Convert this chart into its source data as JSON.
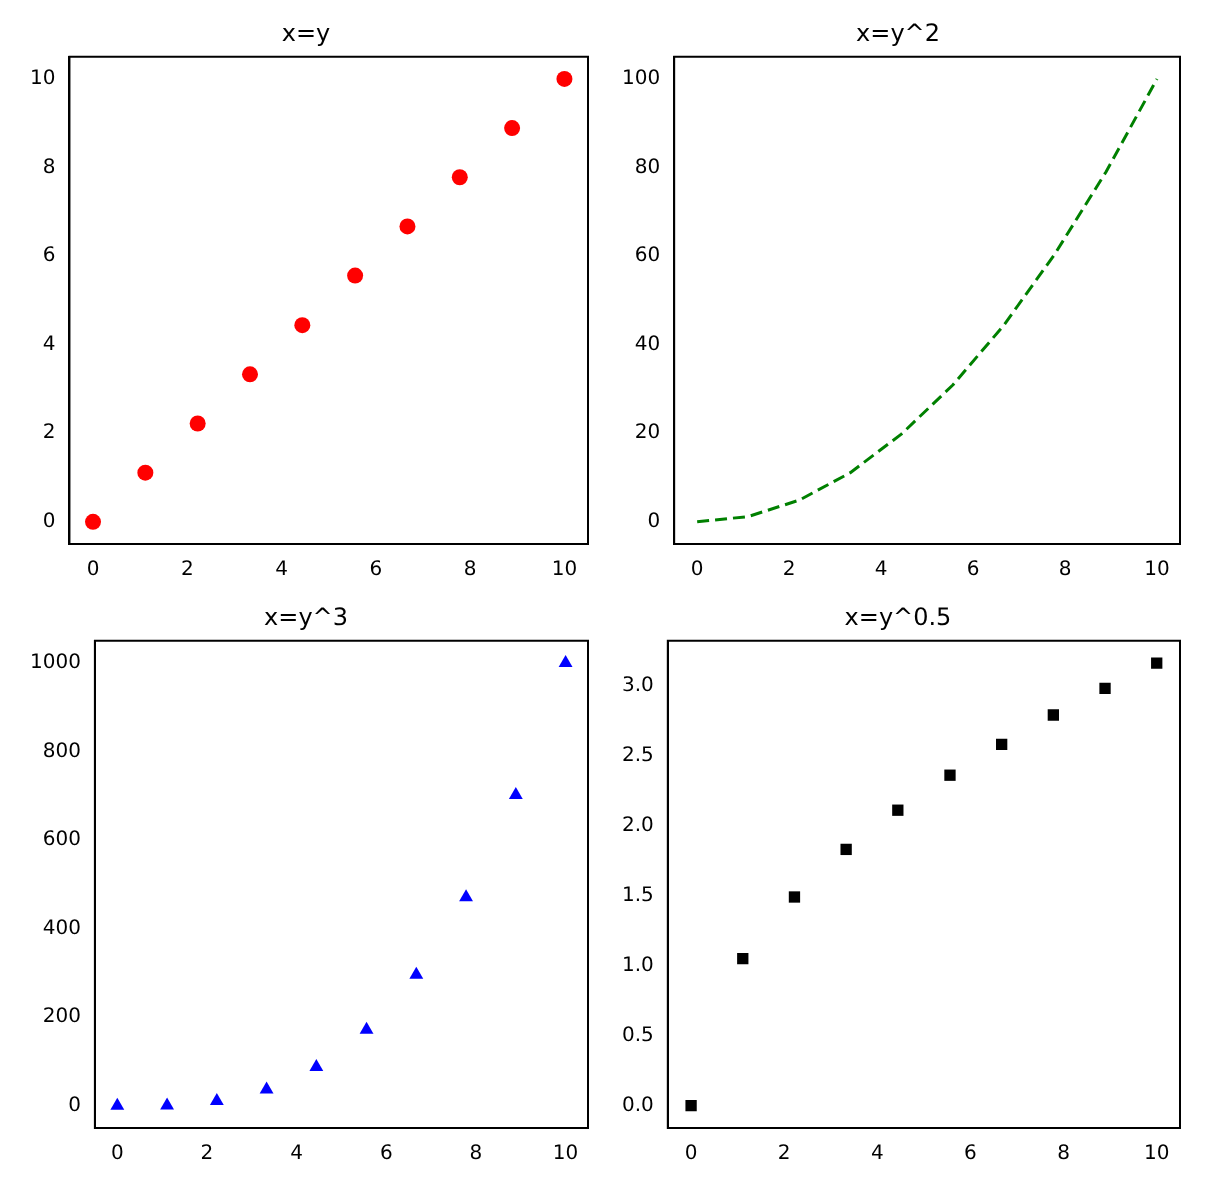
{
  "chart_data": [
    {
      "type": "scatter",
      "title": "x=y",
      "x": [
        0,
        1.11,
        2.22,
        3.33,
        4.44,
        5.56,
        6.67,
        7.78,
        8.89,
        10
      ],
      "series": [
        {
          "color": "#ff0000",
          "values": [
            0,
            1.11,
            2.22,
            3.33,
            4.44,
            5.56,
            6.67,
            7.78,
            8.89,
            10
          ]
        }
      ],
      "marker": "circle",
      "xlim": [
        -0.5,
        10.5
      ],
      "xticks": [
        0,
        2,
        4,
        6,
        8,
        10
      ],
      "ylim": [
        -0.5,
        10.5
      ],
      "yticks": [
        0,
        2,
        4,
        6,
        8,
        10
      ],
      "grid": false,
      "legend": false
    },
    {
      "type": "line",
      "title": "x=y^2",
      "x": [
        0,
        1.11,
        2.22,
        3.33,
        4.44,
        5.56,
        6.67,
        7.78,
        8.89,
        10
      ],
      "series": [
        {
          "color": "#008000",
          "values": [
            0,
            1.2,
            4.9,
            11.1,
            19.8,
            30.9,
            44.4,
            60.5,
            79.0,
            100
          ]
        }
      ],
      "line_style": "dashed",
      "marker": "none",
      "xlim": [
        -0.5,
        10.5
      ],
      "xticks": [
        0,
        2,
        4,
        6,
        8,
        10
      ],
      "ylim": [
        -5,
        105
      ],
      "yticks": [
        0,
        20,
        40,
        60,
        80,
        100
      ],
      "grid": false,
      "legend": false
    },
    {
      "type": "scatter",
      "title": "x=y^3",
      "x": [
        0,
        1.11,
        2.22,
        3.33,
        4.44,
        5.56,
        6.67,
        7.78,
        8.89,
        10
      ],
      "series": [
        {
          "color": "#0000ff",
          "values": [
            0,
            1,
            11,
            37,
            88,
            172,
            296,
            471,
            702,
            1000
          ]
        }
      ],
      "marker": "triangle",
      "xlim": [
        -0.5,
        10.5
      ],
      "xticks": [
        0,
        2,
        4,
        6,
        8,
        10
      ],
      "ylim": [
        -50,
        1050
      ],
      "yticks": [
        0,
        200,
        400,
        600,
        800,
        1000
      ],
      "grid": false,
      "legend": false
    },
    {
      "type": "scatter",
      "title": "x=y^0.5",
      "x": [
        0,
        1.11,
        2.22,
        3.33,
        4.44,
        5.56,
        6.67,
        7.78,
        8.89,
        10
      ],
      "series": [
        {
          "color": "#000000",
          "values": [
            0,
            1.05,
            1.49,
            1.83,
            2.11,
            2.36,
            2.58,
            2.79,
            2.98,
            3.16
          ]
        }
      ],
      "marker": "square",
      "xlim": [
        -0.5,
        10.5
      ],
      "xticks": [
        0,
        2,
        4,
        6,
        8,
        10
      ],
      "ylim": [
        -0.16,
        3.32
      ],
      "yticks": [
        {
          "value": 0,
          "label": "0.0"
        },
        {
          "value": 0.5,
          "label": "0.5"
        },
        {
          "value": 1,
          "label": "1.0"
        },
        {
          "value": 1.5,
          "label": "1.5"
        },
        {
          "value": 2,
          "label": "2.0"
        },
        {
          "value": 2.5,
          "label": "2.5"
        },
        {
          "value": 3,
          "label": "3.0"
        }
      ],
      "grid": false,
      "legend": false
    }
  ]
}
